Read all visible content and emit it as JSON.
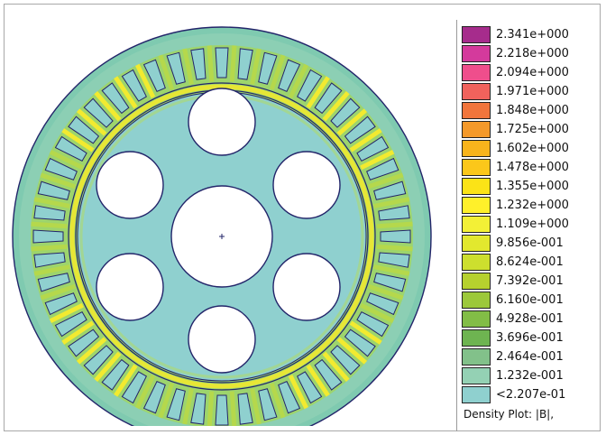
{
  "colors": {
    "background_field": "#8fd0cf",
    "stator_field": "#6cc7b8",
    "tooth_field": "#8ecf9b",
    "low_field_green": "#9fd36a",
    "high_field_yellow": "#f4ec32",
    "boundary": "#23256a",
    "hole_fill": "#ffffff"
  },
  "legend": {
    "entries": [
      {
        "label": "2.341e+000",
        "color": "#a62c8c"
      },
      {
        "label": "2.218e+000",
        "color": "#d43a9c"
      },
      {
        "label": "2.094e+000",
        "color": "#ef4e8c"
      },
      {
        "label": "1.971e+000",
        "color": "#f0625c"
      },
      {
        "label": "1.848e+000",
        "color": "#f1753c"
      },
      {
        "label": "1.725e+000",
        "color": "#f4992a"
      },
      {
        "label": "1.602e+000",
        "color": "#f8b41c"
      },
      {
        "label": "1.478e+000",
        "color": "#fbc71a"
      },
      {
        "label": "1.355e+000",
        "color": "#fbe317"
      },
      {
        "label": "1.232e+000",
        "color": "#fff02a"
      },
      {
        "label": "1.109e+000",
        "color": "#f3f036"
      },
      {
        "label": "9.856e-001",
        "color": "#e2e82e"
      },
      {
        "label": "8.624e-001",
        "color": "#cddf2e"
      },
      {
        "label": "7.392e-001",
        "color": "#b6d12e"
      },
      {
        "label": "6.160e-001",
        "color": "#9cc83a"
      },
      {
        "label": "4.928e-001",
        "color": "#82bd46"
      },
      {
        "label": "3.696e-001",
        "color": "#6eb451"
      },
      {
        "label": "2.464e-001",
        "color": "#82c18a"
      },
      {
        "label": "1.232e-001",
        "color": "#94d1b4"
      },
      {
        "label": "<2.207e-01",
        "color": "#8fd0cf"
      }
    ],
    "caption": "Density Plot: |B|,"
  }
}
